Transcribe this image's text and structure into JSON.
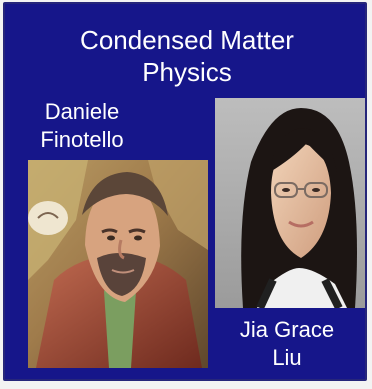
{
  "header": {
    "title_line1": "Condensed Matter",
    "title_line2": "Physics"
  },
  "people": [
    {
      "name_line1": "Daniele",
      "name_line2": "Finotello",
      "photo_icon": "portrait-photo"
    },
    {
      "name_line1": "Jia Grace",
      "name_line2": "Liu",
      "photo_icon": "portrait-photo"
    }
  ],
  "colors": {
    "panel_background": "#16168a",
    "text": "#ffffff"
  }
}
